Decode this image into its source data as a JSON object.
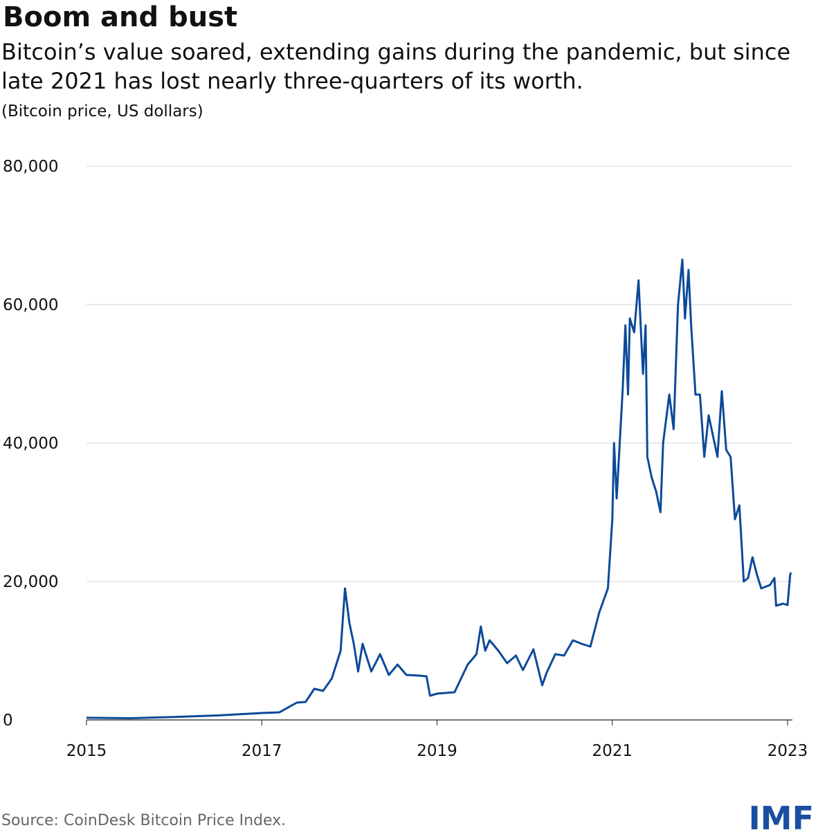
{
  "chart_data": {
    "type": "line",
    "title": "Boom and bust",
    "subtitle": "Bitcoin’s value soared, extending gains during the pandemic, but since late 2021 has lost nearly three-quarters of its worth.",
    "y_label": "(Bitcoin price, US dollars)",
    "source": "Source: CoinDesk Bitcoin Price Index.",
    "logo": "IMF",
    "grid": true,
    "xlim": [
      2015,
      2023
    ],
    "xticks": [
      2015,
      2017,
      2019,
      2021,
      2023
    ],
    "ylim": [
      0,
      80000
    ],
    "yticks": [
      0,
      {
        "value": 20000,
        "label": "20,000"
      },
      {
        "value": 40000,
        "label": "40,000"
      },
      {
        "value": 60000,
        "label": "60,000"
      },
      {
        "value": 80000,
        "label": "80,000"
      }
    ],
    "x": [
      2015.0,
      2015.5,
      2016.0,
      2016.5,
      2017.0,
      2017.2,
      2017.4,
      2017.5,
      2017.6,
      2017.7,
      2017.8,
      2017.9,
      2017.95,
      2018.0,
      2018.05,
      2018.1,
      2018.15,
      2018.25,
      2018.35,
      2018.45,
      2018.55,
      2018.65,
      2018.8,
      2018.88,
      2018.92,
      2019.0,
      2019.2,
      2019.35,
      2019.45,
      2019.5,
      2019.55,
      2019.6,
      2019.7,
      2019.8,
      2019.9,
      2019.98,
      2020.1,
      2020.2,
      2020.25,
      2020.35,
      2020.45,
      2020.55,
      2020.65,
      2020.75,
      2020.85,
      2020.95,
      2021.0,
      2021.02,
      2021.05,
      2021.12,
      2021.15,
      2021.18,
      2021.2,
      2021.25,
      2021.3,
      2021.35,
      2021.38,
      2021.4,
      2021.45,
      2021.5,
      2021.55,
      2021.58,
      2021.65,
      2021.7,
      2021.75,
      2021.8,
      2021.83,
      2021.87,
      2021.9,
      2021.95,
      2022.0,
      2022.05,
      2022.1,
      2022.2,
      2022.25,
      2022.3,
      2022.35,
      2022.4,
      2022.45,
      2022.5,
      2022.55,
      2022.6,
      2022.65,
      2022.7,
      2022.8,
      2022.85,
      2022.87,
      2022.95,
      2023.0,
      2023.03,
      2023.04
    ],
    "series": [
      {
        "name": "Bitcoin price",
        "color": "#0b4a9a",
        "values": [
          320,
          250,
          430,
          650,
          1000,
          1100,
          2500,
          2600,
          4500,
          4200,
          6000,
          10000,
          19000,
          14000,
          11000,
          7000,
          11000,
          7000,
          9500,
          6500,
          8000,
          6500,
          6400,
          6300,
          3500,
          3800,
          4000,
          8000,
          9500,
          13500,
          10000,
          11500,
          10000,
          8200,
          9300,
          7200,
          10200,
          5000,
          6800,
          9500,
          9300,
          11500,
          11000,
          10600,
          15500,
          19000,
          29000,
          40000,
          32000,
          48000,
          57000,
          47000,
          58000,
          56000,
          63500,
          50000,
          57000,
          38000,
          35000,
          33000,
          30000,
          40000,
          47000,
          42000,
          60000,
          66500,
          58000,
          65000,
          57000,
          47000,
          47000,
          38000,
          44000,
          38000,
          47500,
          39000,
          38000,
          29000,
          31000,
          20000,
          20500,
          23500,
          21000,
          19000,
          19500,
          20500,
          16500,
          16800,
          16600,
          21000,
          21300
        ]
      }
    ]
  }
}
